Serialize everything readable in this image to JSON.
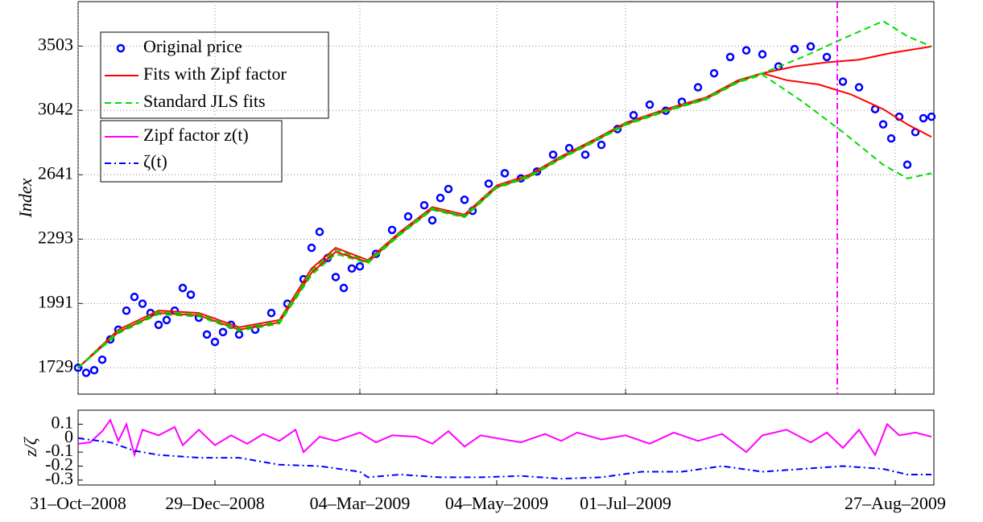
{
  "chart_data": [
    {
      "type": "line",
      "ylabel": "Index",
      "log": true,
      "grid": true,
      "ylim": [
        1632,
        3862
      ],
      "yticks": [
        1729,
        1991,
        2293,
        2641,
        3042,
        3503
      ],
      "critical_x": 188.6,
      "critical_color": "#ff00ff",
      "series": [
        {
          "name": "Original price",
          "color": "#0000ff",
          "style": "markers",
          "curves": [
            {
              "x": [
                0,
                2,
                4,
                6,
                8,
                10,
                12,
                14,
                16,
                18,
                20,
                22,
                24,
                26,
                28,
                30,
                32,
                34,
                36,
                38,
                40,
                44,
                48,
                52,
                56,
                58,
                60,
                62,
                64,
                66,
                68,
                70,
                74,
                78,
                82,
                86,
                88,
                90,
                92,
                96,
                98,
                102,
                106,
                110,
                114,
                118,
                122,
                126,
                130,
                134,
                138,
                142,
                146,
                150,
                154,
                158,
                162,
                166,
                170,
                174,
                178,
                182,
                186,
                190,
                194,
                198,
                200,
                202,
                204,
                206,
                208,
                210,
                212
              ],
              "values": [
                1729,
                1710,
                1720,
                1760,
                1840,
                1880,
                1960,
                2020,
                1990,
                1950,
                1900,
                1920,
                1960,
                2060,
                2030,
                1930,
                1860,
                1830,
                1870,
                1900,
                1860,
                1880,
                1950,
                1990,
                2100,
                2250,
                2330,
                2200,
                2110,
                2060,
                2150,
                2160,
                2220,
                2340,
                2410,
                2470,
                2390,
                2510,
                2560,
                2500,
                2440,
                2590,
                2650,
                2620,
                2660,
                2760,
                2800,
                2760,
                2820,
                2920,
                3010,
                3080,
                3040,
                3100,
                3200,
                3300,
                3420,
                3470,
                3440,
                3350,
                3480,
                3500,
                3420,
                3240,
                3200,
                3050,
                2950,
                2860,
                3000,
                2700,
                2900,
                2990,
                3000
              ]
            }
          ]
        },
        {
          "name": "Fits with Zipf factor",
          "color": "#ff0000",
          "style": "solid",
          "curves": [
            {
              "x": [
                0,
                10,
                20,
                30,
                40,
                50,
                58,
                64,
                72,
                80,
                88,
                96,
                104,
                112,
                120,
                128,
                136,
                146,
                156,
                164,
                170,
                176,
                184,
                192,
                200,
                206,
                212
              ],
              "values": [
                1729,
                1880,
                1960,
                1950,
                1890,
                1920,
                2150,
                2250,
                2190,
                2330,
                2460,
                2420,
                2580,
                2640,
                2750,
                2850,
                2960,
                3050,
                3130,
                3250,
                3300,
                3250,
                3220,
                3150,
                3050,
                2950,
                2870
              ]
            },
            {
              "x": [
                0,
                10,
                20,
                30,
                40,
                50,
                58,
                64,
                72,
                80,
                88,
                96,
                104,
                112,
                120,
                128,
                136,
                146,
                156,
                164,
                170,
                178,
                186,
                194,
                202,
                212
              ],
              "values": [
                1729,
                1870,
                1950,
                1940,
                1880,
                1910,
                2130,
                2230,
                2180,
                2320,
                2450,
                2410,
                2570,
                2630,
                2740,
                2840,
                2950,
                3040,
                3120,
                3240,
                3300,
                3350,
                3380,
                3400,
                3450,
                3500
              ]
            }
          ]
        },
        {
          "name": "Standard JLS fits",
          "color": "#00dd00",
          "style": "dashed",
          "curves": [
            {
              "x": [
                0,
                10,
                20,
                30,
                40,
                50,
                58,
                64,
                72,
                80,
                88,
                96,
                104,
                112,
                120,
                128,
                136,
                146,
                156,
                164,
                170,
                180,
                190,
                200,
                206,
                212
              ],
              "values": [
                1729,
                1875,
                1955,
                1945,
                1885,
                1915,
                2140,
                2240,
                2185,
                2325,
                2455,
                2415,
                2575,
                2635,
                2745,
                2845,
                2955,
                3045,
                3125,
                3245,
                3300,
                3420,
                3560,
                3700,
                3580,
                3500
              ]
            },
            {
              "x": [
                0,
                10,
                20,
                30,
                40,
                50,
                58,
                64,
                72,
                80,
                88,
                96,
                104,
                112,
                120,
                128,
                136,
                146,
                156,
                164,
                170,
                180,
                190,
                200,
                206,
                212
              ],
              "values": [
                1729,
                1865,
                1945,
                1935,
                1875,
                1905,
                2120,
                2220,
                2175,
                2315,
                2445,
                2405,
                2565,
                2625,
                2735,
                2835,
                2945,
                3035,
                3115,
                3235,
                3290,
                3100,
                2900,
                2700,
                2620,
                2650
              ]
            }
          ]
        }
      ]
    },
    {
      "type": "line",
      "ylabel": "z/ζ",
      "grid": false,
      "xlim": [
        0,
        212.6
      ],
      "xticks": [
        {
          "value": 0,
          "label": "31–Oct–2008"
        },
        {
          "value": 34,
          "label": "29–Dec–2008"
        },
        {
          "value": 70,
          "label": "04–Mar–2009"
        },
        {
          "value": 104,
          "label": "04–May–2009"
        },
        {
          "value": 136,
          "label": "01–Jul–2009"
        },
        {
          "value": 203,
          "label": "27–Aug–2009"
        }
      ],
      "ylim": [
        -0.335,
        0.2
      ],
      "yticks": [
        0.1,
        0,
        -0.1,
        -0.2,
        -0.3
      ],
      "series": [
        {
          "name": "Zipf factor z(t)",
          "color": "#ff00ff",
          "style": "solid",
          "curves": [
            {
              "x": [
                0,
                3,
                6,
                8,
                10,
                12,
                14,
                16,
                20,
                24,
                26,
                30,
                34,
                38,
                42,
                46,
                50,
                54,
                56,
                60,
                64,
                70,
                74,
                78,
                84,
                88,
                92,
                96,
                100,
                104,
                110,
                116,
                120,
                124,
                130,
                136,
                142,
                148,
                154,
                160,
                166,
                170,
                176,
                182,
                186,
                190,
                194,
                198,
                201,
                204,
                208,
                212
              ],
              "values": [
                -0.04,
                -0.03,
                0.05,
                0.13,
                -0.02,
                0.1,
                -0.12,
                0.06,
                0.02,
                0.08,
                -0.05,
                0.06,
                -0.05,
                0.02,
                -0.04,
                0.03,
                -0.02,
                0.06,
                -0.1,
                0.01,
                -0.02,
                0.04,
                -0.03,
                0.02,
                0.01,
                -0.04,
                0.05,
                -0.06,
                0.02,
                0.0,
                -0.03,
                0.03,
                -0.02,
                0.04,
                -0.01,
                0.02,
                -0.04,
                0.04,
                -0.02,
                0.03,
                -0.1,
                0.02,
                0.06,
                -0.03,
                0.04,
                -0.07,
                0.06,
                -0.12,
                0.1,
                0.02,
                0.04,
                0.01
              ]
            }
          ]
        },
        {
          "name": "ζ(t)",
          "color": "#0000ff",
          "style": "dashdot",
          "curves": [
            {
              "x": [
                0,
                8,
                14,
                20,
                30,
                40,
                50,
                60,
                70,
                72,
                80,
                90,
                100,
                110,
                120,
                130,
                140,
                150,
                160,
                170,
                180,
                190,
                200,
                206,
                212
              ],
              "values": [
                0,
                -0.03,
                -0.09,
                -0.12,
                -0.14,
                -0.14,
                -0.19,
                -0.2,
                -0.24,
                -0.28,
                -0.26,
                -0.28,
                -0.28,
                -0.27,
                -0.29,
                -0.28,
                -0.24,
                -0.24,
                -0.2,
                -0.24,
                -0.22,
                -0.2,
                -0.22,
                -0.26,
                -0.26
              ]
            }
          ]
        }
      ]
    }
  ]
}
